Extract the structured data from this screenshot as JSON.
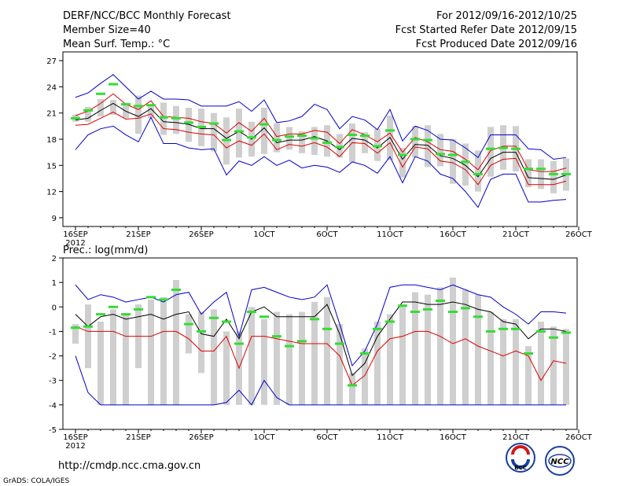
{
  "header": {
    "title": "DERF/NCC/BCC Monthly Forecast",
    "member_size": "Member Size=40",
    "variable": "Mean Surf. Temp.: °C",
    "period": "For 2012/09/16-2012/10/25",
    "refer_date": "Fcst Started Refer Date 2012/09/15",
    "produced_date": "Fcst Produced Date 2012/09/16"
  },
  "footer": {
    "url": "http://cmdp.ncc.cma.gov.cn",
    "grads": "GrADS: COLA/IGES",
    "logo_bcc": "BCC",
    "logo_ncc": "NCC"
  },
  "colors": {
    "envelope": "#0000cc",
    "spread": "#dd0000",
    "mean": "#000000",
    "median": "#33dd33",
    "box": "#cfcfcf"
  },
  "x_axis": {
    "labels": [
      "16SEP",
      "21SEP",
      "26SEP",
      "1OCT",
      "6OCT",
      "11OCT",
      "16OCT",
      "21OCT",
      "26OCT"
    ],
    "year": "2012"
  },
  "chart_data": [
    {
      "type": "line",
      "title": "Mean Surf. Temp.: °C",
      "ylim": [
        8,
        28
      ],
      "yticks": [
        9,
        12,
        15,
        18,
        21,
        24,
        27
      ],
      "x": [
        "16SEP",
        "17SEP",
        "18SEP",
        "19SEP",
        "20SEP",
        "21SEP",
        "22SEP",
        "23SEP",
        "24SEP",
        "25SEP",
        "26SEP",
        "27SEP",
        "28SEP",
        "29SEP",
        "30SEP",
        "1OCT",
        "2OCT",
        "3OCT",
        "4OCT",
        "5OCT",
        "6OCT",
        "7OCT",
        "8OCT",
        "9OCT",
        "10OCT",
        "11OCT",
        "12OCT",
        "13OCT",
        "14OCT",
        "15OCT",
        "16OCT",
        "17OCT",
        "18OCT",
        "19OCT",
        "20OCT",
        "21OCT",
        "22OCT",
        "23OCT",
        "24OCT",
        "25OCT"
      ],
      "series": [
        {
          "name": "max",
          "values": [
            16.8,
            18.5,
            19.2,
            19.5,
            18.5,
            17.7,
            20.5,
            17.5,
            17.5,
            17.0,
            16.8,
            16.9,
            13.9,
            15.5,
            15.0,
            16.0,
            15.0,
            15.6,
            14.7,
            15.0,
            14.8,
            14.2,
            15.4,
            15.0,
            14.1,
            16.0,
            13.0,
            16.0,
            15.5,
            14.0,
            13.5,
            12.0,
            10.2,
            13.4,
            14.0,
            14.0,
            10.8,
            10.8,
            11.0,
            11.1
          ]
        },
        {
          "name": "p25",
          "values": [
            19.6,
            19.7,
            20.4,
            21.1,
            20.3,
            20.4,
            20.9,
            19.2,
            19.1,
            18.8,
            18.6,
            18.5,
            17.0,
            17.8,
            17.3,
            18.6,
            16.8,
            17.4,
            17.2,
            17.6,
            17.1,
            16.0,
            17.6,
            17.5,
            16.4,
            17.6,
            14.8,
            17.1,
            16.9,
            15.5,
            15.3,
            14.5,
            12.8,
            15.0,
            15.7,
            15.8,
            12.8,
            12.8,
            12.8,
            13.2
          ]
        },
        {
          "name": "mean",
          "values": [
            20.2,
            20.4,
            21.3,
            22.1,
            21.2,
            20.6,
            21.5,
            20.0,
            19.9,
            19.7,
            19.2,
            19.2,
            18.1,
            18.9,
            18.0,
            19.3,
            17.6,
            17.9,
            17.9,
            18.3,
            17.8,
            16.8,
            18.1,
            17.9,
            17.0,
            18.2,
            15.7,
            17.4,
            17.3,
            16.1,
            15.8,
            15.0,
            13.7,
            15.8,
            16.5,
            16.5,
            13.6,
            13.5,
            13.4,
            13.9
          ]
        },
        {
          "name": "p75",
          "values": [
            20.7,
            21.2,
            22.1,
            23.2,
            22.0,
            21.4,
            22.4,
            20.6,
            20.5,
            20.4,
            20.0,
            19.8,
            18.7,
            19.9,
            18.9,
            20.4,
            18.3,
            18.6,
            18.6,
            19.0,
            18.8,
            17.5,
            19.1,
            18.5,
            17.7,
            18.7,
            16.5,
            18.2,
            17.7,
            16.8,
            16.6,
            15.7,
            14.5,
            16.7,
            17.2,
            17.2,
            14.5,
            14.3,
            14.3,
            14.7
          ]
        },
        {
          "name": "min",
          "values": [
            22.8,
            23.3,
            24.4,
            25.4,
            24.0,
            22.6,
            23.5,
            22.6,
            22.6,
            22.5,
            21.8,
            21.8,
            21.8,
            22.3,
            21.2,
            22.5,
            19.9,
            20.1,
            20.6,
            22.0,
            21.4,
            19.2,
            20.6,
            20.2,
            19.1,
            21.4,
            17.8,
            19.5,
            19.0,
            18.0,
            17.9,
            17.0,
            15.9,
            18.5,
            18.5,
            18.5,
            16.9,
            16.8,
            15.7,
            15.9
          ]
        },
        {
          "name": "median",
          "values": [
            20.4,
            21.3,
            23.2,
            24.3,
            22.0,
            21.8,
            21.9,
            20.5,
            20.4,
            19.9,
            19.4,
            19.8,
            17.9,
            18.9,
            18.2,
            19.7,
            17.9,
            18.3,
            18.4,
            18.1,
            17.6,
            17.1,
            18.5,
            18.4,
            17.2,
            19.0,
            16.2,
            18.0,
            17.9,
            16.3,
            16.2,
            15.4,
            14.0,
            16.9,
            17.0,
            16.9,
            14.6,
            14.6,
            14.0,
            14.0
          ]
        }
      ],
      "boxes": {
        "top": [
          20.8,
          21.7,
          22.6,
          22.5,
          22.0,
          23.0,
          22.0,
          22.2,
          21.8,
          21.6,
          21.5,
          21.0,
          20.5,
          21.5,
          20.0,
          21.6,
          19.8,
          19.4,
          18.9,
          19.4,
          19.6,
          18.6,
          19.8,
          18.8,
          19.2,
          20.7,
          17.0,
          19.5,
          19.6,
          18.6,
          18.0,
          17.5,
          16.7,
          19.4,
          19.6,
          19.5,
          15.7,
          15.7,
          15.5,
          15.8
        ],
        "bottom": [
          20.0,
          20.0,
          20.6,
          20.8,
          20.4,
          18.6,
          20.4,
          18.5,
          18.6,
          17.7,
          17.2,
          16.6,
          15.1,
          15.9,
          16.0,
          16.3,
          16.5,
          16.8,
          16.4,
          16.2,
          16.0,
          15.9,
          15.4,
          16.4,
          15.5,
          15.6,
          13.6,
          15.9,
          14.8,
          14.9,
          12.9,
          12.7,
          12.0,
          13.7,
          14.5,
          14.3,
          12.5,
          12.3,
          11.8,
          12.1
        ]
      },
      "ylabel": "",
      "xlabel": ""
    },
    {
      "type": "line",
      "title": "Prec.: log(mm/d)",
      "ylim": [
        -5,
        2
      ],
      "yticks": [
        -5,
        -4,
        -3,
        -2,
        -1,
        0,
        1,
        2
      ],
      "x": [
        "16SEP",
        "17SEP",
        "18SEP",
        "19SEP",
        "20SEP",
        "21SEP",
        "22SEP",
        "23SEP",
        "24SEP",
        "25SEP",
        "26SEP",
        "27SEP",
        "28SEP",
        "29SEP",
        "30SEP",
        "1OCT",
        "2OCT",
        "3OCT",
        "4OCT",
        "5OCT",
        "6OCT",
        "7OCT",
        "8OCT",
        "9OCT",
        "10OCT",
        "11OCT",
        "12OCT",
        "13OCT",
        "14OCT",
        "15OCT",
        "16OCT",
        "17OCT",
        "18OCT",
        "19OCT",
        "20OCT",
        "21OCT",
        "22OCT",
        "23OCT",
        "24OCT",
        "25OCT"
      ],
      "series": [
        {
          "name": "max",
          "values": [
            0.9,
            0.3,
            0.5,
            0.4,
            0.2,
            0.3,
            0.4,
            0.2,
            0.5,
            0.6,
            -0.3,
            0.2,
            0.6,
            -1.2,
            0.7,
            0.8,
            0.6,
            0.4,
            0.3,
            0.4,
            0.9,
            -0.7,
            -2.4,
            -1.8,
            -0.7,
            0.8,
            0.9,
            0.9,
            0.8,
            0.7,
            0.9,
            0.7,
            0.5,
            0.4,
            0.0,
            -0.3,
            -0.7,
            -0.2,
            -0.2,
            -0.25
          ]
        },
        {
          "name": "mean",
          "values": [
            -0.3,
            -0.8,
            -0.4,
            -0.3,
            -0.5,
            -0.4,
            -0.3,
            -0.5,
            -0.3,
            -0.2,
            -1.1,
            -1.2,
            -0.5,
            -1.3,
            -0.2,
            0.0,
            -0.4,
            -0.4,
            -0.4,
            -0.4,
            0.1,
            -1.1,
            -2.8,
            -2.3,
            -1.2,
            -0.5,
            0.2,
            0.2,
            0.1,
            0.1,
            0.2,
            0.1,
            -0.1,
            -0.2,
            -0.6,
            -0.7,
            -1.3,
            -0.9,
            -0.9,
            -1.0
          ]
        },
        {
          "name": "median",
          "values": [
            -0.85,
            -0.8,
            -0.3,
            0.0,
            -0.3,
            -0.1,
            0.4,
            0.3,
            0.7,
            -0.7,
            -1.0,
            -0.45,
            -0.6,
            -1.5,
            -0.2,
            -0.4,
            -1.2,
            -1.6,
            -1.4,
            -0.5,
            -0.9,
            -1.5,
            -3.2,
            -1.9,
            -0.9,
            -0.6,
            0.05,
            -0.2,
            -0.1,
            0.25,
            -0.2,
            -0.05,
            -0.4,
            -1.0,
            -0.9,
            -0.9,
            -1.9,
            -1.0,
            -1.25,
            -1.05
          ]
        },
        {
          "name": "p25",
          "values": [
            -0.8,
            -1.0,
            -1.0,
            -1.0,
            -1.2,
            -1.2,
            -1.2,
            -1.0,
            -1.0,
            -1.3,
            -1.8,
            -1.8,
            -1.2,
            -2.5,
            -1.2,
            -1.2,
            -1.3,
            -1.4,
            -1.5,
            -1.5,
            -1.5,
            -2.0,
            -3.2,
            -2.8,
            -1.8,
            -1.3,
            -1.2,
            -1.0,
            -1.0,
            -1.2,
            -1.5,
            -1.3,
            -1.6,
            -1.8,
            -2.0,
            -1.8,
            -2.0,
            -3.0,
            -2.2,
            -2.3
          ]
        },
        {
          "name": "min",
          "values": [
            -2.0,
            -3.5,
            -4.0,
            -4.0,
            -4.0,
            -4.0,
            -4.0,
            -4.0,
            -4.0,
            -4.0,
            -4.0,
            -4.0,
            -3.9,
            -3.4,
            -4.0,
            -3.0,
            -3.7,
            -4.0,
            -4.0,
            -4.0,
            -4.0,
            -4.0,
            -4.0,
            -4.0,
            -4.0,
            -4.0,
            -4.0,
            -4.0,
            -4.0,
            -4.0,
            -4.0,
            -4.0,
            -4.0,
            -4.0,
            -4.0,
            -4.0,
            -4.0,
            -4.0,
            -4.0,
            -4.0
          ]
        }
      ],
      "boxes": {
        "top": [
          -0.7,
          0.1,
          -0.6,
          -0.1,
          -0.3,
          0.1,
          0.3,
          0.4,
          1.1,
          -0.3,
          -0.2,
          -0.1,
          -1.0,
          -1.0,
          0.0,
          -0.5,
          -0.2,
          -0.3,
          -0.2,
          0.2,
          0.4,
          -0.7,
          -2.7,
          -1.7,
          -0.6,
          -0.3,
          0.1,
          0.6,
          0.5,
          0.8,
          1.2,
          0.7,
          0.5,
          -0.2,
          -0.5,
          -0.5,
          -1.6,
          -0.6,
          -0.8,
          -0.9
        ],
        "bottom": [
          -1.5,
          -2.5,
          -4.0,
          -4.0,
          -4.0,
          -2.5,
          -4.0,
          -4.0,
          -4.0,
          -1.9,
          -2.7,
          -4.0,
          -4.0,
          -4.0,
          -4.0,
          -4.0,
          -4.0,
          -4.0,
          -4.0,
          -4.0,
          -4.0,
          -4.0,
          -4.0,
          -4.0,
          -4.0,
          -4.0,
          -4.0,
          -4.0,
          -4.0,
          -4.0,
          -4.0,
          -4.0,
          -4.0,
          -4.0,
          -4.0,
          -4.0,
          -4.0,
          -4.0,
          -4.0,
          -4.0
        ]
      },
      "ylabel": "",
      "xlabel": ""
    }
  ]
}
